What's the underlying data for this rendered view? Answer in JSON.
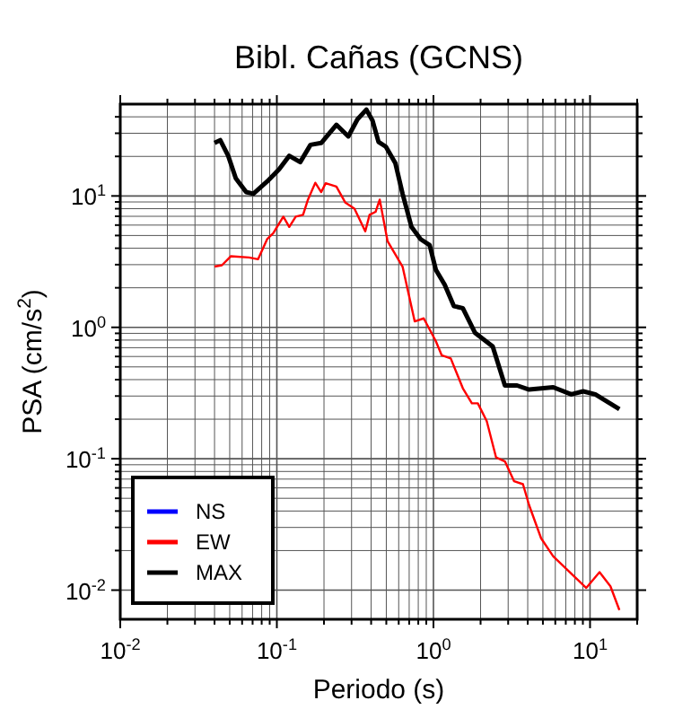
{
  "chart_data": {
    "type": "line",
    "title": "Bibl. Cañas (GCNS)",
    "xlabel": "Periodo (s)",
    "ylabel": "PSA (cm/s$^{2}$)",
    "log": "xy",
    "grid": true,
    "legend": "bottom left",
    "line_style": "solid",
    "marker": "none",
    "xlim": [
      0.01,
      20
    ],
    "ylim": [
      0.006,
      50
    ],
    "xticks": [
      {
        "value": 0.01,
        "label": "10$^{-2}$"
      },
      {
        "value": 0.02,
        "label": null
      },
      {
        "value": 0.03,
        "label": null
      },
      {
        "value": 0.04,
        "label": null
      },
      {
        "value": 0.05,
        "label": null
      },
      {
        "value": 0.06,
        "label": null
      },
      {
        "value": 0.07,
        "label": null
      },
      {
        "value": 0.08,
        "label": null
      },
      {
        "value": 0.09,
        "label": null
      },
      {
        "value": 0.1,
        "label": "10$^{-1}$"
      },
      {
        "value": 0.2,
        "label": null
      },
      {
        "value": 0.3,
        "label": null
      },
      {
        "value": 0.4,
        "label": null
      },
      {
        "value": 0.5,
        "label": null
      },
      {
        "value": 0.6,
        "label": null
      },
      {
        "value": 0.7,
        "label": null
      },
      {
        "value": 0.8,
        "label": null
      },
      {
        "value": 0.9,
        "label": null
      },
      {
        "value": 1,
        "label": "10$^{0}$"
      },
      {
        "value": 2,
        "label": null
      },
      {
        "value": 3,
        "label": null
      },
      {
        "value": 4,
        "label": null
      },
      {
        "value": 5,
        "label": null
      },
      {
        "value": 6,
        "label": null
      },
      {
        "value": 7,
        "label": null
      },
      {
        "value": 8,
        "label": null
      },
      {
        "value": 9,
        "label": null
      },
      {
        "value": 10,
        "label": "10$^{1}$"
      },
      {
        "value": 20,
        "label": null
      }
    ],
    "yticks": [
      {
        "value": 0.01,
        "label": "10$^{-2}$"
      },
      {
        "value": 0.02,
        "label": null
      },
      {
        "value": 0.03,
        "label": null
      },
      {
        "value": 0.04,
        "label": null
      },
      {
        "value": 0.05,
        "label": null
      },
      {
        "value": 0.06,
        "label": null
      },
      {
        "value": 0.07,
        "label": null
      },
      {
        "value": 0.08,
        "label": null
      },
      {
        "value": 0.09,
        "label": null
      },
      {
        "value": 0.1,
        "label": "10$^{-1}$"
      },
      {
        "value": 0.2,
        "label": null
      },
      {
        "value": 0.3,
        "label": null
      },
      {
        "value": 0.4,
        "label": null
      },
      {
        "value": 0.5,
        "label": null
      },
      {
        "value": 0.6,
        "label": null
      },
      {
        "value": 0.7,
        "label": null
      },
      {
        "value": 0.8,
        "label": null
      },
      {
        "value": 0.9,
        "label": null
      },
      {
        "value": 1,
        "label": "10$^{0}$"
      },
      {
        "value": 2,
        "label": null
      },
      {
        "value": 3,
        "label": null
      },
      {
        "value": 4,
        "label": null
      },
      {
        "value": 5,
        "label": null
      },
      {
        "value": 6,
        "label": null
      },
      {
        "value": 7,
        "label": null
      },
      {
        "value": 8,
        "label": null
      },
      {
        "value": 9,
        "label": null
      },
      {
        "value": 10,
        "label": "10$^{1}$"
      },
      {
        "value": 20,
        "label": null
      },
      {
        "value": 30,
        "label": null
      },
      {
        "value": 40,
        "label": null
      }
    ],
    "series": [
      {
        "name": "NS",
        "color": "#0000ff"
      },
      {
        "name": "EW",
        "color": "#ff0000",
        "x": [
          0.04,
          0.0446,
          0.0509,
          0.0664,
          0.0759,
          0.0867,
          0.0948,
          0.11,
          0.12,
          0.132,
          0.147,
          0.158,
          0.176,
          0.192,
          0.205,
          0.24,
          0.274,
          0.313,
          0.367,
          0.391,
          0.427,
          0.454,
          0.509,
          0.635,
          0.759,
          0.867,
          1.035,
          1.13,
          1.29,
          1.54,
          1.76,
          1.92,
          2.19,
          2.51,
          2.86,
          3.27,
          3.73,
          4.08,
          4.87,
          5.82,
          9.46,
          11.5,
          13.5,
          15.4
        ],
        "values": [
          2.9,
          2.97,
          3.48,
          3.4,
          3.3,
          4.69,
          5.21,
          6.95,
          5.81,
          6.95,
          7.18,
          9.38,
          12.6,
          10.7,
          12.5,
          11.8,
          8.89,
          8.0,
          5.38,
          7.18,
          7.57,
          9.38,
          4.54,
          2.9,
          1.11,
          1.17,
          0.787,
          0.612,
          0.58,
          0.344,
          0.264,
          0.264,
          0.193,
          0.1025,
          0.0955,
          0.0675,
          0.064,
          0.0444,
          0.0248,
          0.0181,
          0.0104,
          0.0137,
          0.0107,
          0.00705
        ]
      },
      {
        "name": "MAX",
        "color": "#000000",
        "x": [
          0.04,
          0.0435,
          0.0489,
          0.0547,
          0.0637,
          0.0708,
          0.0867,
          0.1035,
          0.12,
          0.141,
          0.164,
          0.192,
          0.24,
          0.286,
          0.327,
          0.373,
          0.408,
          0.446,
          0.497,
          0.571,
          0.635,
          0.724,
          0.828,
          0.946,
          1.035,
          1.18,
          1.35,
          1.54,
          1.84,
          2.39,
          2.86,
          3.42,
          4.08,
          5.82,
          7.59,
          9.04,
          10.8,
          15.4
        ],
        "values": [
          25.3,
          26.6,
          20.2,
          13.6,
          10.7,
          10.4,
          12.9,
          16.0,
          20.2,
          18.1,
          24.5,
          25.3,
          34.8,
          28.4,
          38.3,
          45.4,
          37.5,
          25.8,
          23.7,
          17.8,
          10.4,
          5.81,
          4.69,
          4.22,
          2.75,
          2.11,
          1.45,
          1.4,
          0.91,
          0.716,
          0.361,
          0.361,
          0.336,
          0.35,
          0.309,
          0.326,
          0.309,
          0.238
        ]
      }
    ]
  }
}
